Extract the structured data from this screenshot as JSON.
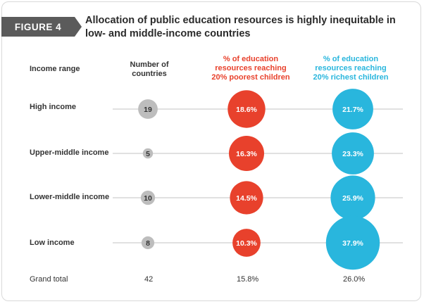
{
  "figure_label": "FIGURE 4",
  "title": "Allocation of public education resources is highly inequitable in low- and middle-income countries",
  "headers": {
    "income_range": "Income range",
    "countries": "Number of countries",
    "poorest": "% of education resources reaching 20% poorest children",
    "richest": "% of education resources reaching 20% richest children"
  },
  "colors": {
    "countries": "#bdbdbd",
    "poorest": "#e8412c",
    "richest": "#29b6dd",
    "poorest_header": "#e8412c",
    "richest_header": "#29b6dd",
    "line": "#cfcfcf"
  },
  "grand_total": {
    "label": "Grand total",
    "countries": "42",
    "poorest": "15.8%",
    "richest": "26.0%"
  },
  "chart_data": {
    "type": "bubble-table",
    "rows": [
      {
        "label": "High income",
        "countries": 19,
        "poorest": 18.6,
        "richest": 21.7,
        "countries_text": "19",
        "poorest_text": "18.6%",
        "richest_text": "21.7%"
      },
      {
        "label": "Upper-middle income",
        "countries": 5,
        "poorest": 16.3,
        "richest": 23.3,
        "countries_text": "5",
        "poorest_text": "16.3%",
        "richest_text": "23.3%"
      },
      {
        "label": "Lower-middle income",
        "countries": 10,
        "poorest": 14.5,
        "richest": 25.9,
        "countries_text": "10",
        "poorest_text": "14.5%",
        "richest_text": "25.9%"
      },
      {
        "label": "Low income",
        "countries": 8,
        "poorest": 10.3,
        "richest": 37.9,
        "countries_text": "8",
        "poorest_text": "10.3%",
        "richest_text": "37.9%"
      }
    ]
  }
}
